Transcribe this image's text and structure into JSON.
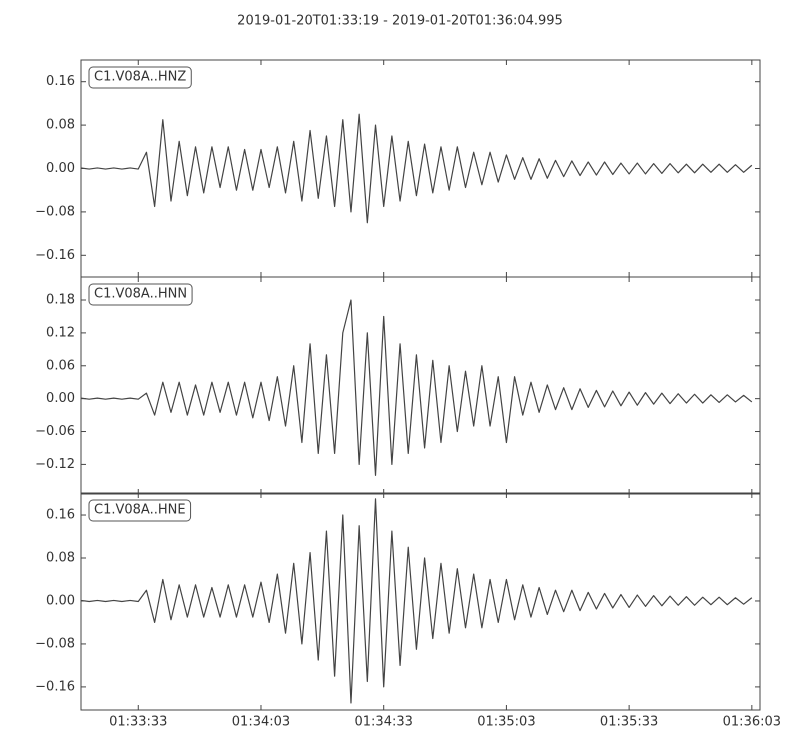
{
  "chart_data": [
    {
      "type": "line",
      "title": "2019-01-20T01:33:19  -  2019-01-20T01:36:04.995",
      "label": "C1.V08A..HNZ",
      "color": "#444444",
      "xlim": [
        0,
        165.995
      ],
      "ylim": [
        -0.2,
        0.2
      ],
      "yticks": [
        0.16,
        0.08,
        {
          "value": 0,
          "label": "0.00"
        },
        {
          "value": -0.08,
          "label": "−0.08"
        },
        {
          "value": -0.16,
          "label": "−0.16"
        }
      ],
      "x": [
        0,
        2,
        4,
        6,
        8,
        10,
        12,
        14,
        16,
        18,
        20,
        22,
        24,
        26,
        28,
        30,
        32,
        34,
        36,
        38,
        40,
        42,
        44,
        46,
        48,
        50,
        52,
        54,
        56,
        58,
        60,
        62,
        64,
        66,
        68,
        70,
        72,
        74,
        76,
        78,
        80,
        82,
        84,
        86,
        88,
        90,
        92,
        94,
        96,
        98,
        100,
        102,
        104,
        106,
        108,
        110,
        112,
        114,
        116,
        118,
        120,
        122,
        124,
        126,
        128,
        130,
        132,
        134,
        136,
        138,
        140,
        142,
        144,
        146,
        148,
        150,
        152,
        154,
        156,
        158,
        160,
        162,
        164
      ],
      "values": [
        0.001,
        -0.001,
        0.001,
        -0.001,
        0.001,
        -0.001,
        0.001,
        -0.001,
        0.03,
        -0.07,
        0.09,
        -0.06,
        0.05,
        -0.05,
        0.04,
        -0.045,
        0.04,
        -0.035,
        0.04,
        -0.04,
        0.035,
        -0.04,
        0.035,
        -0.035,
        0.04,
        -0.045,
        0.05,
        -0.06,
        0.07,
        -0.055,
        0.06,
        -0.07,
        0.09,
        -0.08,
        0.1,
        -0.1,
        0.08,
        -0.07,
        0.06,
        -0.06,
        0.05,
        -0.05,
        0.045,
        -0.045,
        0.04,
        -0.04,
        0.04,
        -0.035,
        0.03,
        -0.03,
        0.03,
        -0.025,
        0.025,
        -0.02,
        0.02,
        -0.02,
        0.018,
        -0.018,
        0.015,
        -0.015,
        0.014,
        -0.013,
        0.012,
        -0.012,
        0.012,
        -0.011,
        0.01,
        -0.01,
        0.01,
        -0.01,
        0.009,
        -0.009,
        0.009,
        -0.008,
        0.008,
        -0.008,
        0.008,
        -0.007,
        0.008,
        -0.007,
        0.007,
        -0.007,
        0.006
      ]
    },
    {
      "type": "line",
      "label": "C1.V08A..HNN",
      "color": "#444444",
      "xlim": [
        0,
        165.995
      ],
      "ylim": [
        -0.174,
        0.222
      ],
      "yticks": [
        0.18,
        0.12,
        0.06,
        {
          "value": 0,
          "label": "0.00"
        },
        {
          "value": -0.06,
          "label": "−0.06"
        },
        {
          "value": -0.12,
          "label": "−0.12"
        }
      ],
      "x": [
        0,
        2,
        4,
        6,
        8,
        10,
        12,
        14,
        16,
        18,
        20,
        22,
        24,
        26,
        28,
        30,
        32,
        34,
        36,
        38,
        40,
        42,
        44,
        46,
        48,
        50,
        52,
        54,
        56,
        58,
        60,
        62,
        64,
        66,
        68,
        70,
        72,
        74,
        76,
        78,
        80,
        82,
        84,
        86,
        88,
        90,
        92,
        94,
        96,
        98,
        100,
        102,
        104,
        106,
        108,
        110,
        112,
        114,
        116,
        118,
        120,
        122,
        124,
        126,
        128,
        130,
        132,
        134,
        136,
        138,
        140,
        142,
        144,
        146,
        148,
        150,
        152,
        154,
        156,
        158,
        160,
        162,
        164
      ],
      "values": [
        0.001,
        -0.001,
        0.001,
        -0.001,
        0.001,
        -0.001,
        0.001,
        -0.001,
        0.01,
        -0.03,
        0.03,
        -0.025,
        0.03,
        -0.03,
        0.025,
        -0.03,
        0.03,
        -0.025,
        0.03,
        -0.03,
        0.03,
        -0.035,
        0.03,
        -0.04,
        0.04,
        -0.05,
        0.06,
        -0.08,
        0.1,
        -0.1,
        0.08,
        -0.1,
        0.12,
        0.18,
        -0.12,
        0.12,
        -0.14,
        0.15,
        -0.12,
        0.1,
        -0.1,
        0.08,
        -0.09,
        0.07,
        -0.08,
        0.06,
        -0.06,
        0.05,
        -0.05,
        0.06,
        -0.05,
        0.04,
        -0.08,
        0.04,
        -0.03,
        0.03,
        -0.025,
        0.025,
        -0.02,
        0.02,
        -0.02,
        0.018,
        -0.016,
        0.015,
        -0.015,
        0.014,
        -0.013,
        0.012,
        -0.012,
        0.011,
        -0.01,
        0.01,
        -0.009,
        0.009,
        -0.008,
        0.008,
        -0.008,
        0.007,
        -0.007,
        0.007,
        -0.006,
        0.006,
        -0.006
      ]
    },
    {
      "type": "line",
      "label": "C1.V08A..HNE",
      "color": "#444444",
      "xlim": [
        0,
        165.995
      ],
      "ylim": [
        -0.203,
        0.201
      ],
      "yticks": [
        0.16,
        0.08,
        {
          "value": 0,
          "label": "0.00"
        },
        {
          "value": -0.08,
          "label": "−0.08"
        },
        {
          "value": -0.16,
          "label": "−0.16"
        }
      ],
      "xticks": [
        {
          "value": 14,
          "label": "01:33:33"
        },
        {
          "value": 44,
          "label": "01:34:03"
        },
        {
          "value": 74,
          "label": "01:34:33"
        },
        {
          "value": 104,
          "label": "01:35:03"
        },
        {
          "value": 134,
          "label": "01:35:33"
        },
        {
          "value": 164,
          "label": "01:36:03"
        }
      ],
      "x": [
        0,
        2,
        4,
        6,
        8,
        10,
        12,
        14,
        16,
        18,
        20,
        22,
        24,
        26,
        28,
        30,
        32,
        34,
        36,
        38,
        40,
        42,
        44,
        46,
        48,
        50,
        52,
        54,
        56,
        58,
        60,
        62,
        64,
        66,
        68,
        70,
        72,
        74,
        76,
        78,
        80,
        82,
        84,
        86,
        88,
        90,
        92,
        94,
        96,
        98,
        100,
        102,
        104,
        106,
        108,
        110,
        112,
        114,
        116,
        118,
        120,
        122,
        124,
        126,
        128,
        130,
        132,
        134,
        136,
        138,
        140,
        142,
        144,
        146,
        148,
        150,
        152,
        154,
        156,
        158,
        160,
        162,
        164
      ],
      "values": [
        0.001,
        -0.001,
        0.001,
        -0.001,
        0.001,
        -0.001,
        0.001,
        -0.001,
        0.02,
        -0.04,
        0.04,
        -0.035,
        0.03,
        -0.03,
        0.03,
        -0.03,
        0.025,
        -0.03,
        0.03,
        -0.03,
        0.03,
        -0.03,
        0.035,
        -0.04,
        0.05,
        -0.06,
        0.07,
        -0.08,
        0.09,
        -0.11,
        0.13,
        -0.14,
        0.16,
        -0.19,
        0.14,
        -0.15,
        0.19,
        -0.16,
        0.13,
        -0.12,
        0.1,
        -0.09,
        0.08,
        -0.07,
        0.07,
        -0.06,
        0.06,
        -0.05,
        0.05,
        -0.05,
        0.04,
        -0.04,
        0.04,
        -0.035,
        0.03,
        -0.03,
        0.025,
        -0.025,
        0.02,
        -0.02,
        0.02,
        -0.018,
        0.016,
        -0.015,
        0.014,
        -0.013,
        0.012,
        -0.012,
        0.011,
        -0.01,
        0.01,
        -0.009,
        0.009,
        -0.008,
        0.008,
        -0.008,
        0.007,
        -0.007,
        0.007,
        -0.007,
        0.006,
        -0.006,
        0.006
      ]
    }
  ]
}
